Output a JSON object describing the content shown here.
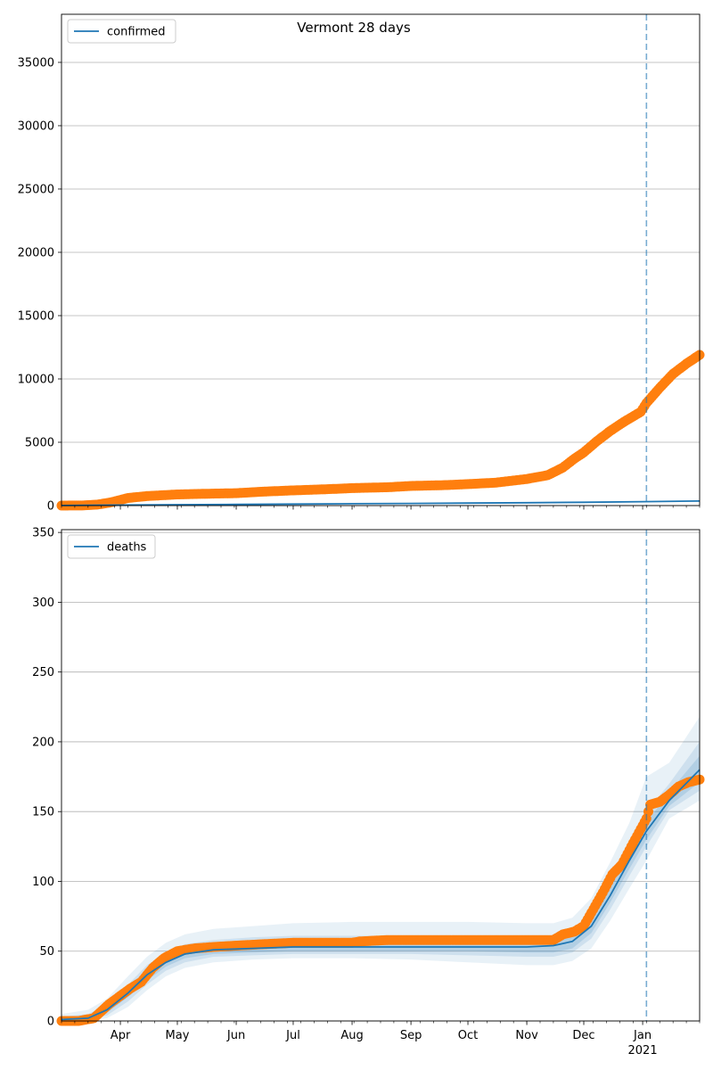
{
  "title": "Vermont 28 days",
  "colors": {
    "model": "#1f77b4",
    "observed": "#ff7f0e",
    "band": "#1f77b4",
    "grid": "#b0b0b0",
    "vline": "#1f77b4"
  },
  "x_axis": {
    "start": "2020-03-01",
    "end": "2021-01-31",
    "months": [
      {
        "date": "2020-04-01",
        "label": "Apr"
      },
      {
        "date": "2020-05-01",
        "label": "May"
      },
      {
        "date": "2020-06-01",
        "label": "Jun"
      },
      {
        "date": "2020-07-01",
        "label": "Jul"
      },
      {
        "date": "2020-08-01",
        "label": "Aug"
      },
      {
        "date": "2020-09-01",
        "label": "Sep"
      },
      {
        "date": "2020-10-01",
        "label": "Oct"
      },
      {
        "date": "2020-11-01",
        "label": "Nov"
      },
      {
        "date": "2020-12-01",
        "label": "Dec"
      },
      {
        "date": "2021-01-01",
        "label": "Jan"
      }
    ],
    "year_label": "2021",
    "forecast_start": "2021-01-03"
  },
  "chart_data": [
    {
      "type": "line",
      "legend": "confirmed",
      "legend_position": "top-left",
      "grid": true,
      "ylim": [
        0,
        38800
      ],
      "yticks": [
        0,
        5000,
        10000,
        15000,
        20000,
        25000,
        30000,
        35000
      ],
      "model": {
        "name": "confirmed",
        "x": [
          "2020-03-01",
          "2020-04-01",
          "2020-05-01",
          "2020-06-01",
          "2020-07-01",
          "2020-08-01",
          "2020-09-01",
          "2020-10-01",
          "2020-11-01",
          "2020-12-01",
          "2021-01-01",
          "2021-01-31"
        ],
        "y": [
          5,
          40,
          70,
          95,
          120,
          145,
          170,
          195,
          225,
          260,
          310,
          360
        ]
      },
      "observed": {
        "x": [
          "2020-03-01",
          "2020-03-12",
          "2020-03-20",
          "2020-03-27",
          "2020-04-05",
          "2020-04-15",
          "2020-05-01",
          "2020-05-15",
          "2020-06-01",
          "2020-06-15",
          "2020-07-01",
          "2020-07-20",
          "2020-08-01",
          "2020-08-20",
          "2020-09-01",
          "2020-09-20",
          "2020-10-01",
          "2020-10-15",
          "2020-11-01",
          "2020-11-12",
          "2020-11-20",
          "2020-11-26",
          "2020-12-01",
          "2020-12-08",
          "2020-12-15",
          "2020-12-22",
          "2020-12-31",
          "2021-01-03",
          "2021-01-10",
          "2021-01-17",
          "2021-01-24",
          "2021-01-31"
        ],
        "y": [
          0,
          10,
          80,
          250,
          600,
          750,
          880,
          930,
          980,
          1100,
          1200,
          1300,
          1380,
          1450,
          1550,
          1620,
          1700,
          1800,
          2100,
          2400,
          3000,
          3700,
          4200,
          5100,
          5900,
          6600,
          7400,
          8100,
          9300,
          10400,
          11200,
          11900
        ]
      }
    },
    {
      "type": "line",
      "legend": "deaths",
      "legend_position": "top-left",
      "grid": true,
      "ylim": [
        0,
        352
      ],
      "yticks": [
        0,
        50,
        100,
        150,
        200,
        250,
        300,
        350
      ],
      "model": {
        "name": "deaths",
        "x": [
          "2020-03-01",
          "2020-03-15",
          "2020-03-25",
          "2020-04-05",
          "2020-04-15",
          "2020-04-25",
          "2020-05-05",
          "2020-05-20",
          "2020-06-10",
          "2020-07-01",
          "2020-08-01",
          "2020-09-01",
          "2020-10-01",
          "2020-11-01",
          "2020-11-15",
          "2020-11-25",
          "2020-12-05",
          "2020-12-15",
          "2020-12-25",
          "2021-01-03",
          "2021-01-15",
          "2021-01-31"
        ],
        "y": [
          1,
          2,
          8,
          20,
          33,
          42,
          48,
          51,
          52,
          53,
          53,
          53,
          53,
          53,
          54,
          57,
          68,
          90,
          115,
          136,
          158,
          180
        ]
      },
      "bands": [
        {
          "lo": [
            0,
            0,
            2,
            10,
            22,
            32,
            38,
            42,
            44,
            45,
            45,
            44,
            42,
            40,
            40,
            43,
            52,
            72,
            95,
            115,
            145,
            158
          ],
          "hi": [
            5,
            8,
            16,
            32,
            46,
            56,
            62,
            66,
            68,
            70,
            71,
            71,
            71,
            70,
            70,
            74,
            88,
            114,
            142,
            175,
            185,
            218
          ]
        },
        {
          "lo": [
            0,
            1,
            4,
            14,
            26,
            36,
            42,
            46,
            47,
            48,
            48,
            48,
            47,
            46,
            46,
            49,
            59,
            80,
            104,
            125,
            151,
            165
          ],
          "hi": [
            3,
            5,
            12,
            26,
            40,
            49,
            55,
            58,
            60,
            61,
            61,
            61,
            61,
            61,
            61,
            65,
            78,
            102,
            128,
            150,
            170,
            200
          ]
        },
        {
          "lo": [
            0,
            1,
            6,
            17,
            29,
            39,
            45,
            48,
            49,
            50,
            50,
            50,
            50,
            49,
            49,
            52,
            63,
            85,
            109,
            130,
            154,
            171
          ],
          "hi": [
            2,
            3,
            10,
            23,
            37,
            46,
            52,
            55,
            56,
            57,
            57,
            57,
            57,
            57,
            57,
            61,
            73,
            96,
            121,
            142,
            164,
            190
          ]
        }
      ],
      "observed": {
        "x": [
          "2020-03-01",
          "2020-03-10",
          "2020-03-18",
          "2020-03-22",
          "2020-03-26",
          "2020-04-01",
          "2020-04-06",
          "2020-04-12",
          "2020-04-18",
          "2020-04-24",
          "2020-05-01",
          "2020-05-10",
          "2020-05-20",
          "2020-06-01",
          "2020-06-15",
          "2020-07-01",
          "2020-07-20",
          "2020-08-01",
          "2020-08-05",
          "2020-08-20",
          "2020-09-15",
          "2020-10-15",
          "2020-11-01",
          "2020-11-15",
          "2020-11-20",
          "2020-11-26",
          "2020-12-01",
          "2020-12-06",
          "2020-12-11",
          "2020-12-16",
          "2020-12-21",
          "2020-12-26",
          "2020-12-30",
          "2021-01-03",
          "2021-01-05",
          "2021-01-10",
          "2021-01-15",
          "2021-01-20",
          "2021-01-25",
          "2021-01-31"
        ],
        "y": [
          0,
          0,
          2,
          7,
          12,
          18,
          23,
          28,
          38,
          45,
          50,
          52,
          53,
          54,
          55,
          56,
          56,
          56,
          57,
          58,
          58,
          58,
          58,
          58,
          62,
          64,
          68,
          80,
          92,
          105,
          112,
          125,
          135,
          145,
          155,
          157,
          162,
          168,
          171,
          173
        ]
      }
    }
  ]
}
